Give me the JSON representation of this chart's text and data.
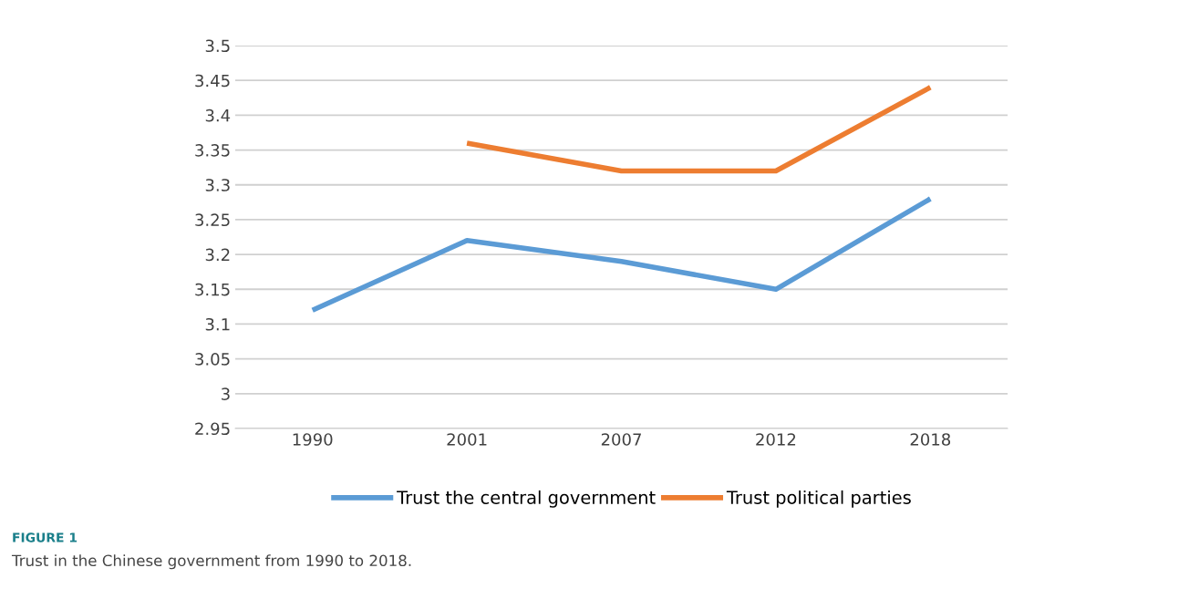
{
  "chart_data": {
    "type": "line",
    "categories": [
      "1990",
      "2001",
      "2007",
      "2012",
      "2018"
    ],
    "series": [
      {
        "name": "Trust the central government",
        "color": "#5b9bd5",
        "values": [
          3.12,
          3.22,
          3.19,
          3.15,
          3.28
        ]
      },
      {
        "name": "Trust political parties",
        "color": "#ed7d31",
        "values": [
          null,
          3.36,
          3.32,
          3.32,
          3.44
        ]
      }
    ],
    "ylim": [
      2.95,
      3.5
    ],
    "yticks": [
      2.95,
      3,
      3.05,
      3.1,
      3.15,
      3.2,
      3.25,
      3.3,
      3.35,
      3.4,
      3.45,
      3.5
    ],
    "grid": "y",
    "legend": "bottom",
    "marker": "none",
    "line_style": "solid",
    "annotations": [
      "FIGURE 1",
      "Trust in the Chinese government from 1990 to 2018."
    ]
  }
}
